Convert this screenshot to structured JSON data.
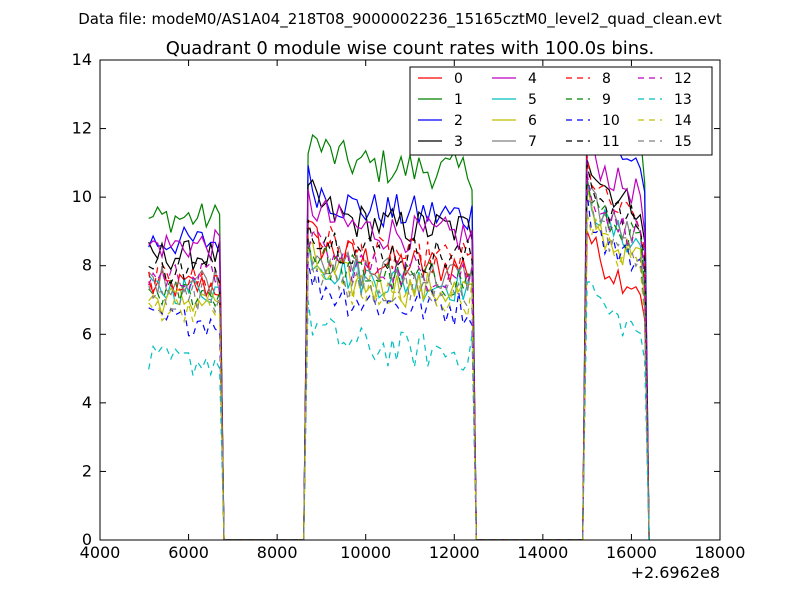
{
  "chart_data": {
    "type": "line",
    "suptitle": "Data file: modeM0/AS1A04_218T08_9000002236_15165cztM0_level2_quad_clean.evt",
    "title": "Quadrant 0 module wise count rates with 100.0s bins.",
    "xlabel": "",
    "ylabel": "",
    "x_offset_label": "+2.6962e8",
    "xlim": [
      4000,
      18000
    ],
    "ylim": [
      0,
      14
    ],
    "xticks": [
      "4000",
      "6000",
      "8000",
      "10000",
      "12000",
      "14000",
      "16000",
      "18000"
    ],
    "yticks": [
      "0",
      "2",
      "4",
      "6",
      "8",
      "10",
      "12",
      "14"
    ],
    "grid": false,
    "legend_position": "top-right",
    "legend_columns": 4,
    "segments": [
      {
        "start": 5100,
        "n": 17
      },
      {
        "start": 8700,
        "n": 38
      },
      {
        "start": 15000,
        "n": 14
      }
    ],
    "zero_segments": [
      [
        6800,
        8600
      ],
      [
        12600,
        14900
      ]
    ],
    "series": [
      {
        "name": "0",
        "color": "#ff0000",
        "dash": false,
        "levels": [
          7.4,
          8.1,
          7.9
        ]
      },
      {
        "name": "1",
        "color": "#008000",
        "dash": false,
        "levels": [
          9.4,
          10.9,
          12.2
        ]
      },
      {
        "name": "2",
        "color": "#0000ff",
        "dash": false,
        "levels": [
          8.7,
          9.6,
          11.5
        ]
      },
      {
        "name": "3",
        "color": "#000000",
        "dash": false,
        "levels": [
          8.3,
          9.2,
          10.2
        ]
      },
      {
        "name": "4",
        "color": "#bf00bf",
        "dash": false,
        "levels": [
          8.6,
          9.0,
          10.6
        ]
      },
      {
        "name": "5",
        "color": "#00bfbf",
        "dash": false,
        "levels": [
          7.3,
          7.6,
          9.1
        ]
      },
      {
        "name": "6",
        "color": "#bfbf00",
        "dash": false,
        "levels": [
          7.0,
          7.4,
          8.7
        ]
      },
      {
        "name": "7",
        "color": "#808080",
        "dash": false,
        "levels": [
          7.6,
          7.8,
          9.3
        ]
      },
      {
        "name": "8",
        "color": "#ff0000",
        "dash": true,
        "levels": [
          7.6,
          8.3,
          9.8
        ]
      },
      {
        "name": "9",
        "color": "#008000",
        "dash": true,
        "levels": [
          7.2,
          7.7,
          9.2
        ]
      },
      {
        "name": "10",
        "color": "#0000ff",
        "dash": true,
        "levels": [
          6.4,
          6.9,
          8.6
        ]
      },
      {
        "name": "11",
        "color": "#000000",
        "dash": true,
        "levels": [
          7.9,
          8.4,
          9.7
        ]
      },
      {
        "name": "12",
        "color": "#bf00bf",
        "dash": true,
        "levels": [
          7.7,
          7.9,
          9.4
        ]
      },
      {
        "name": "13",
        "color": "#00bfbf",
        "dash": true,
        "levels": [
          5.2,
          5.6,
          6.6
        ]
      },
      {
        "name": "14",
        "color": "#bfbf00",
        "dash": true,
        "levels": [
          6.8,
          7.2,
          8.5
        ]
      },
      {
        "name": "15",
        "color": "#808080",
        "dash": true,
        "levels": [
          7.1,
          7.3,
          8.8
        ]
      }
    ]
  }
}
